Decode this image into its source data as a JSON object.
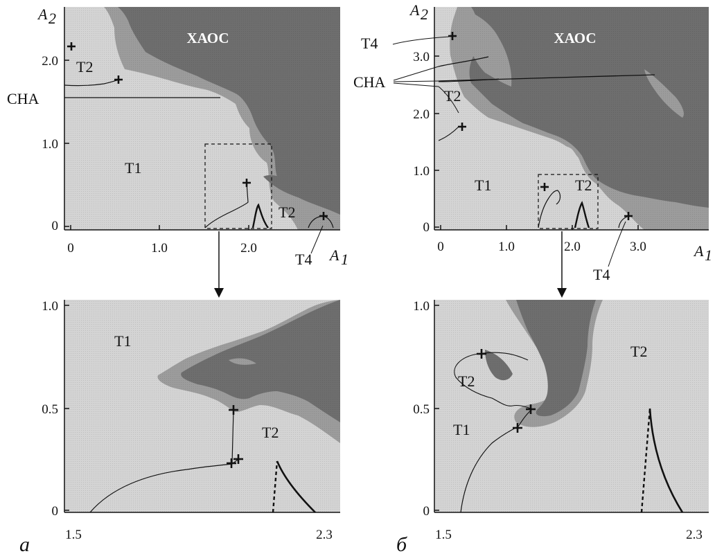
{
  "panels": {
    "a_top": {
      "y_axis_label": "A",
      "y_axis_sub": "2",
      "x_axis_label": "A",
      "x_axis_sub": "1",
      "y_ticks": [
        "2.0",
        "1.0",
        "0"
      ],
      "x_ticks": [
        "0",
        "1.0",
        "2.0"
      ],
      "regions": {
        "chaos": "ХАОС",
        "t2_upper": "T2",
        "t1": "T1",
        "t2_lower": "T2"
      },
      "annotations": {
        "cha": "CHA",
        "t4": "T4"
      }
    },
    "b_top": {
      "y_axis_label": "A",
      "y_axis_sub": "2",
      "x_axis_label": "A",
      "x_axis_sub": "1",
      "y_ticks": [
        "3.0",
        "2.0",
        "1.0",
        "0"
      ],
      "x_ticks": [
        "0",
        "1.0",
        "2.0",
        "3.0"
      ],
      "regions": {
        "chaos": "ХАОС",
        "t2_upper": "T2",
        "t1": "T1",
        "t2_lower": "T2"
      },
      "annotations": {
        "cha": "CHA",
        "t4_top": "T4",
        "t4_bottom": "T4"
      }
    },
    "a_bottom": {
      "y_ticks": [
        "1.0",
        "0.5",
        "0"
      ],
      "x_ticks": [
        "1.5",
        "2.3"
      ],
      "regions": {
        "t1": "T1",
        "t2": "T2"
      }
    },
    "b_bottom": {
      "y_ticks": [
        "1.0",
        "0.5",
        "0"
      ],
      "x_ticks": [
        "1.5",
        "2.3"
      ],
      "regions": {
        "t2_left": "T2",
        "t1": "T1",
        "t2_right": "T2"
      }
    }
  },
  "captions": {
    "a": "а",
    "b": "б"
  },
  "colors": {
    "chaos": "#6e6e6e",
    "transition": "#9c9c9c",
    "stable": "#d4d4d4",
    "line": "#111111"
  }
}
